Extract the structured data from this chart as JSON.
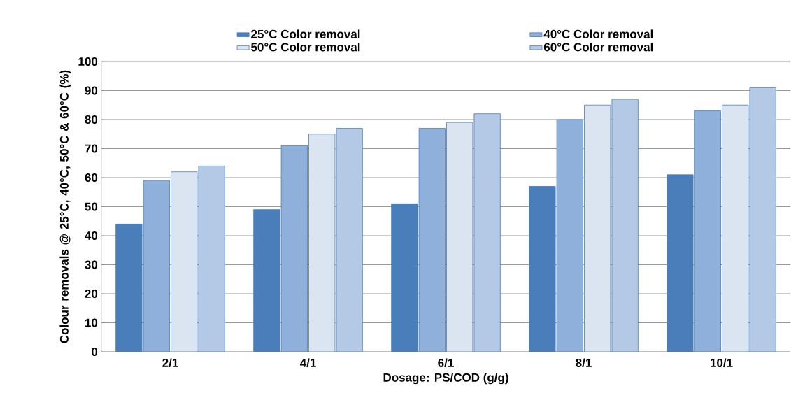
{
  "chart_data": {
    "type": "bar",
    "xlabel": "Dosage: PS/COD (g/g)",
    "ylabel": "Colour removals @ 25°C, 40°C, 50°C & 60°C (%)",
    "categories": [
      "2/1",
      "4/1",
      "6/1",
      "8/1",
      "10/1"
    ],
    "series": [
      {
        "name": "25°C Color removal",
        "color": "#4a7ebb",
        "values": [
          44,
          49,
          51,
          57,
          61
        ]
      },
      {
        "name": "40°C Color removal",
        "color": "#8fb0db",
        "values": [
          59,
          71,
          77,
          80,
          83
        ]
      },
      {
        "name": "50°C Color removal",
        "color": "#dbe5f2",
        "values": [
          62,
          75,
          79,
          85,
          85
        ]
      },
      {
        "name": "60°C Color removal",
        "color": "#b3c9e6",
        "values": [
          64,
          77,
          82,
          87,
          91
        ]
      }
    ],
    "ylim": [
      0,
      100
    ],
    "yticks": [
      0,
      10,
      20,
      30,
      40,
      50,
      60,
      70,
      80,
      90,
      100
    ],
    "grid": "y",
    "legend": "top"
  }
}
